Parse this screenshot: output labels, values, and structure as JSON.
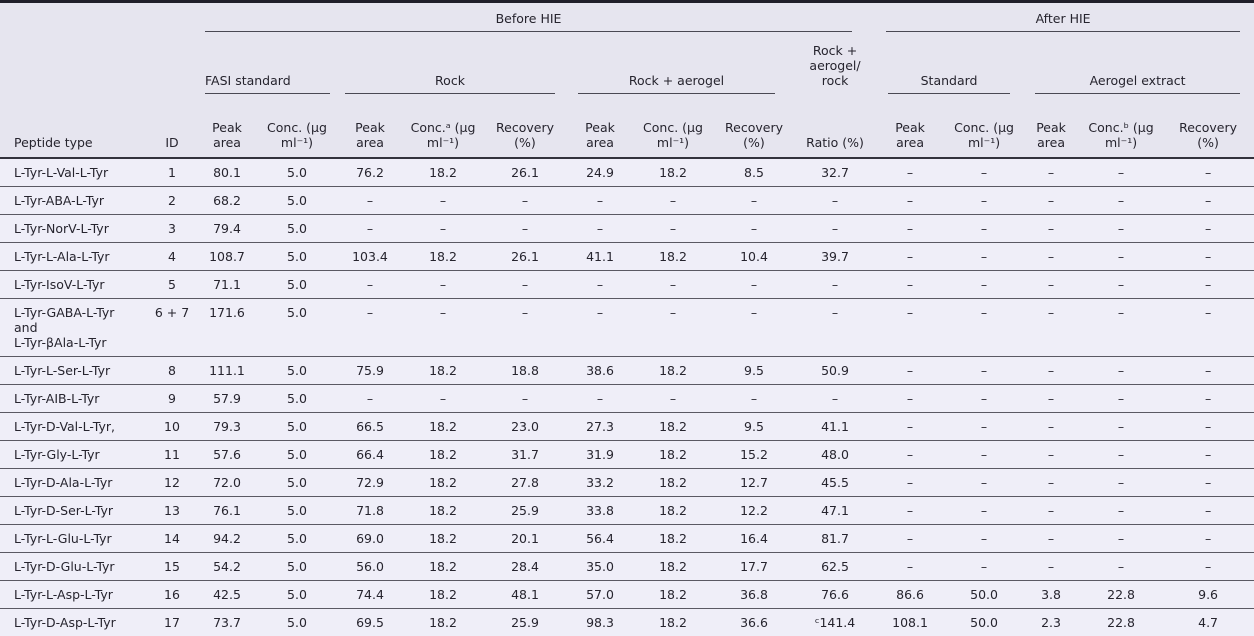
{
  "header": {
    "before_hie": "Before HIE",
    "after_hie": "After HIE",
    "groups": {
      "fasi": "FASI standard",
      "rock": "Rock",
      "rock_aerogel": "Rock + aerogel",
      "rock_aerogel_rock": "Rock + aerogel/ rock",
      "standard": "Standard",
      "aerogel_extract": "Aerogel extract"
    },
    "columns": {
      "peptide": "Peptide type",
      "id": "ID",
      "peak_area": "Peak area",
      "conc": "Conc. (μg ml⁻¹)",
      "conc_a": "Conc.ᵃ (μg ml⁻¹)",
      "conc_b": "Conc.ᵇ (μg ml⁻¹)",
      "recovery": "Recovery (%)",
      "ratio": "Ratio (%)"
    }
  },
  "rows": [
    {
      "peptide": "L-Tyr-L-Val-L-Tyr",
      "id": "1",
      "values": [
        "80.1",
        "5.0",
        "76.2",
        "18.2",
        "26.1",
        "24.9",
        "18.2",
        "8.5",
        "32.7",
        "–",
        "–",
        "–",
        "–",
        "–"
      ]
    },
    {
      "peptide": "L-Tyr-ABA-L-Tyr",
      "id": "2",
      "values": [
        "68.2",
        "5.0",
        "–",
        "–",
        "–",
        "–",
        "–",
        "–",
        "–",
        "–",
        "–",
        "–",
        "–",
        "–"
      ]
    },
    {
      "peptide": "L-Tyr-NorV-L-Tyr",
      "id": "3",
      "values": [
        "79.4",
        "5.0",
        "–",
        "–",
        "–",
        "–",
        "–",
        "–",
        "–",
        "–",
        "–",
        "–",
        "–",
        "–"
      ]
    },
    {
      "peptide": "L-Tyr-L-Ala-L-Tyr",
      "id": "4",
      "values": [
        "108.7",
        "5.0",
        "103.4",
        "18.2",
        "26.1",
        "41.1",
        "18.2",
        "10.4",
        "39.7",
        "–",
        "–",
        "–",
        "–",
        "–"
      ]
    },
    {
      "peptide": "L-Tyr-IsoV-L-Tyr",
      "id": "5",
      "values": [
        "71.1",
        "5.0",
        "–",
        "–",
        "–",
        "–",
        "–",
        "–",
        "–",
        "–",
        "–",
        "–",
        "–",
        "–"
      ]
    },
    {
      "peptide": "L-Tyr-GABA-L-Tyr\nand\nL-Tyr-βAla-L-Tyr",
      "id": "6 + 7",
      "values": [
        "171.6",
        "5.0",
        "–",
        "–",
        "–",
        "–",
        "–",
        "–",
        "–",
        "–",
        "–",
        "–",
        "–",
        "–"
      ]
    },
    {
      "peptide": "L-Tyr-L-Ser-L-Tyr",
      "id": "8",
      "values": [
        "111.1",
        "5.0",
        "75.9",
        "18.2",
        "18.8",
        "38.6",
        "18.2",
        "9.5",
        "50.9",
        "–",
        "–",
        "–",
        "–",
        "–"
      ]
    },
    {
      "peptide": "L-Tyr-AIB-L-Tyr",
      "id": "9",
      "values": [
        "57.9",
        "5.0",
        "–",
        "–",
        "–",
        "–",
        "–",
        "–",
        "–",
        "–",
        "–",
        "–",
        "–",
        "–"
      ]
    },
    {
      "peptide": "L-Tyr-D-Val-L-Tyr,",
      "id": "10",
      "values": [
        "79.3",
        "5.0",
        "66.5",
        "18.2",
        "23.0",
        "27.3",
        "18.2",
        "9.5",
        "41.1",
        "–",
        "–",
        "–",
        "–",
        "–"
      ]
    },
    {
      "peptide": "L-Tyr-Gly-L-Tyr",
      "id": "11",
      "values": [
        "57.6",
        "5.0",
        "66.4",
        "18.2",
        "31.7",
        "31.9",
        "18.2",
        "15.2",
        "48.0",
        "–",
        "–",
        "–",
        "–",
        "–"
      ]
    },
    {
      "peptide": "L-Tyr-D-Ala-L-Tyr",
      "id": "12",
      "values": [
        "72.0",
        "5.0",
        "72.9",
        "18.2",
        "27.8",
        "33.2",
        "18.2",
        "12.7",
        "45.5",
        "–",
        "–",
        "–",
        "–",
        "–"
      ]
    },
    {
      "peptide": "L-Tyr-D-Ser-L-Tyr",
      "id": "13",
      "values": [
        "76.1",
        "5.0",
        "71.8",
        "18.2",
        "25.9",
        "33.8",
        "18.2",
        "12.2",
        "47.1",
        "–",
        "–",
        "–",
        "–",
        "–"
      ]
    },
    {
      "peptide": "L-Tyr-L-Glu-L-Tyr",
      "id": "14",
      "values": [
        "94.2",
        "5.0",
        "69.0",
        "18.2",
        "20.1",
        "56.4",
        "18.2",
        "16.4",
        "81.7",
        "–",
        "–",
        "–",
        "–",
        "–"
      ]
    },
    {
      "peptide": "L-Tyr-D-Glu-L-Tyr",
      "id": "15",
      "values": [
        "54.2",
        "5.0",
        "56.0",
        "18.2",
        "28.4",
        "35.0",
        "18.2",
        "17.7",
        "62.5",
        "–",
        "–",
        "–",
        "–",
        "–"
      ]
    },
    {
      "peptide": "L-Tyr-L-Asp-L-Tyr",
      "id": "16",
      "values": [
        "42.5",
        "5.0",
        "74.4",
        "18.2",
        "48.1",
        "57.0",
        "18.2",
        "36.8",
        "76.6",
        "86.6",
        "50.0",
        "3.8",
        "22.8",
        "9.6"
      ]
    },
    {
      "peptide": "L-Tyr-D-Asp-L-Tyr",
      "id": "17",
      "values": [
        "73.7",
        "5.0",
        "69.5",
        "18.2",
        "25.9",
        "98.3",
        "18.2",
        "36.6",
        "ᶜ141.4",
        "108.1",
        "50.0",
        "2.3",
        "22.8",
        "4.7"
      ]
    }
  ]
}
